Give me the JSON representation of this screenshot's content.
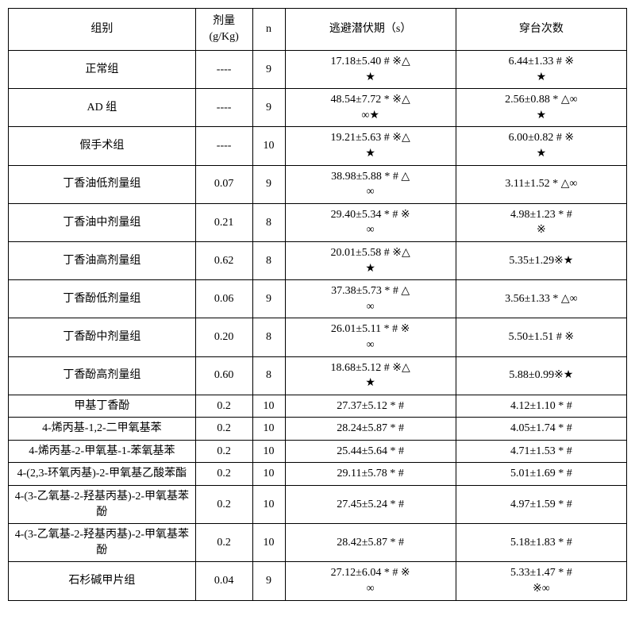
{
  "headers": {
    "group": "组别",
    "dose": "剂量\n(g/Kg)",
    "n": "n",
    "latency": "逃避潜伏期（s）",
    "crossings": "穿台次数"
  },
  "rows": [
    {
      "group": "正常组",
      "dose": "----",
      "n": "9",
      "latency": "17.18±5.40 # ※△\n★",
      "crossings": "6.44±1.33 # ※\n★"
    },
    {
      "group": "AD 组",
      "dose": "----",
      "n": "9",
      "latency": "48.54±7.72 * ※△\n∞★",
      "crossings": "2.56±0.88 * △∞\n★"
    },
    {
      "group": "假手术组",
      "dose": "----",
      "n": "10",
      "latency": "19.21±5.63 # ※△\n★",
      "crossings": "6.00±0.82 # ※\n★"
    },
    {
      "group": "丁香油低剂量组",
      "dose": "0.07",
      "n": "9",
      "latency": "38.98±5.88 *  # △\n∞",
      "crossings": "3.11±1.52 * △∞"
    },
    {
      "group": "丁香油中剂量组",
      "dose": "0.21",
      "n": "8",
      "latency": "29.40±5.34 *  # ※\n∞",
      "crossings": "4.98±1.23 *  #\n※"
    },
    {
      "group": "丁香油高剂量组",
      "dose": "0.62",
      "n": "8",
      "latency": "20.01±5.58 # ※△\n★",
      "crossings": "5.35±1.29※★"
    },
    {
      "group": "丁香酚低剂量组",
      "dose": "0.06",
      "n": "9",
      "latency": "37.38±5.73 *  # △\n∞",
      "crossings": "3.56±1.33 * △∞"
    },
    {
      "group": "丁香酚中剂量组",
      "dose": "0.20",
      "n": "8",
      "latency": "26.01±5.11 *  # ※\n∞",
      "crossings": "5.50±1.51 # ※"
    },
    {
      "group": "丁香酚高剂量组",
      "dose": "0.60",
      "n": "8",
      "latency": "18.68±5.12 # ※△\n★",
      "crossings": "5.88±0.99※★"
    },
    {
      "group": "甲基丁香酚",
      "dose": "0.2",
      "n": "10",
      "latency": "27.37±5.12 *  #",
      "crossings": "4.12±1.10 *  #"
    },
    {
      "group": "4-烯丙基-1,2-二甲氧基苯",
      "dose": "0.2",
      "n": "10",
      "latency": "28.24±5.87 *  #",
      "crossings": "4.05±1.74 *  #"
    },
    {
      "group": "4-烯丙基-2-甲氧基-1-苯氧基苯",
      "dose": "0.2",
      "n": "10",
      "latency": "25.44±5.64 *  #",
      "crossings": "4.71±1.53 *  #"
    },
    {
      "group": "4-(2,3-环氧丙基)-2-甲氧基乙酸苯酯",
      "dose": "0.2",
      "n": "10",
      "latency": "29.11±5.78 *  #",
      "crossings": "5.01±1.69 *  #"
    },
    {
      "group": "4-(3-乙氧基-2-羟基丙基)-2-甲氧基苯酚",
      "dose": "0.2",
      "n": "10",
      "latency": "27.45±5.24 *  #",
      "crossings": "4.97±1.59 *  #"
    },
    {
      "group": "4-(3-乙氧基-2-羟基丙基)-2-甲氧基苯酚",
      "dose": "0.2",
      "n": "10",
      "latency": "28.42±5.87 *  #",
      "crossings": "5.18±1.83 *  #"
    },
    {
      "group": "石杉碱甲片组",
      "dose": "0.04",
      "n": "9",
      "latency": "27.12±6.04 *  # ※\n∞",
      "crossings": "5.33±1.47 *  #\n※∞"
    }
  ]
}
